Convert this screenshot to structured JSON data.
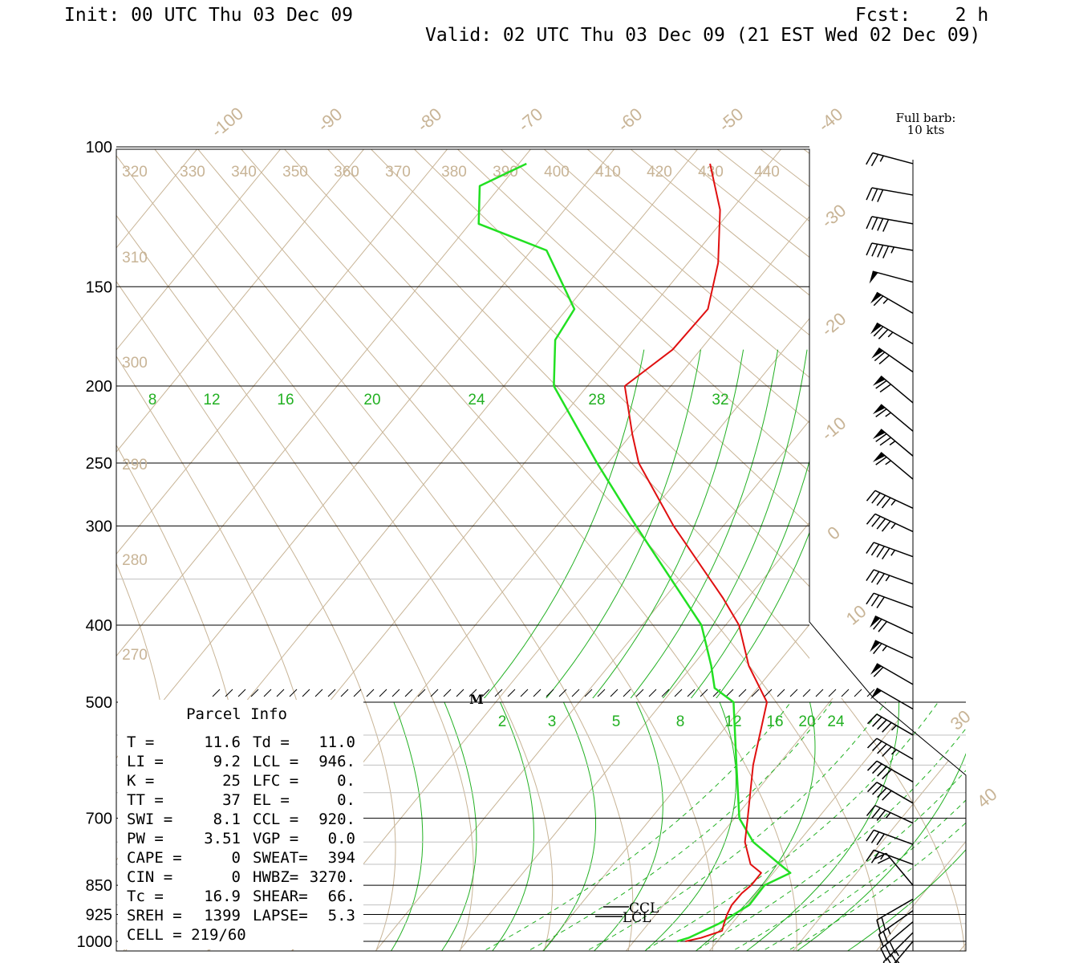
{
  "header": {
    "init": "Init: 00 UTC Thu 03 Dec 09",
    "fcst": "Fcst:    2 h",
    "valid": "Valid: 02 UTC Thu 03 Dec 09 (21 EST Wed 02 Dec 09)"
  },
  "colors": {
    "temperature": "#e01010",
    "dewpoint": "#22e022",
    "isotherm": "#c8b496",
    "mixing_ratio": "#22b022",
    "frame": "#000000"
  },
  "wind_legend": {
    "line1": "Full barb:",
    "line2": "10 kts"
  },
  "chart_data": {
    "type": "skew-t log-p sounding",
    "pressure_ticks": [
      "100",
      "150",
      "200",
      "250",
      "300",
      "400",
      "500",
      "700",
      "850",
      "925",
      "1000"
    ],
    "isotherm_labels": [
      "-100",
      "-90",
      "-80",
      "-70",
      "-60",
      "-50",
      "-40",
      "-30",
      "-20",
      "-10",
      "0",
      "10",
      "30",
      "40"
    ],
    "theta_labels_top": [
      "320",
      "330",
      "340",
      "350",
      "360",
      "370",
      "380",
      "390",
      "400",
      "410",
      "420",
      "430",
      "440"
    ],
    "theta_labels_left": [
      "310",
      "300",
      "290",
      "280",
      "270"
    ],
    "mixing_ratio_upper": [
      "8",
      "12",
      "16",
      "20",
      "24",
      "28",
      "32"
    ],
    "mixing_ratio_lower": [
      "2",
      "3",
      "5",
      "8",
      "12",
      "16",
      "20",
      "24"
    ],
    "level_markers": [
      "CCL",
      "LCL",
      "M"
    ],
    "temperature_profile": [
      [
        1000,
        13.5
      ],
      [
        990,
        14.5
      ],
      [
        970,
        15.3
      ],
      [
        950,
        13.8
      ],
      [
        925,
        12.0
      ],
      [
        900,
        10.4
      ],
      [
        870,
        9.0
      ],
      [
        850,
        8.4
      ],
      [
        820,
        7.0
      ],
      [
        800,
        4.0
      ],
      [
        750,
        -1.0
      ],
      [
        700,
        -5.0
      ],
      [
        600,
        -13.0
      ],
      [
        500,
        -20.0
      ],
      [
        450,
        -26.5
      ],
      [
        400,
        -32.0
      ],
      [
        370,
        -36.5
      ],
      [
        300,
        -48.5
      ],
      [
        250,
        -57.0
      ],
      [
        230,
        -59.5
      ],
      [
        200,
        -63.0
      ],
      [
        180,
        -59.0
      ],
      [
        160,
        -56.5
      ],
      [
        140,
        -57.0
      ],
      [
        120,
        -58.5
      ],
      [
        105,
        -61.0
      ]
    ],
    "dewpoint_profile": [
      [
        1000,
        12.5
      ],
      [
        990,
        13.0
      ],
      [
        950,
        13.2
      ],
      [
        900,
        12.5
      ],
      [
        850,
        10.0
      ],
      [
        820,
        10.5
      ],
      [
        800,
        7.5
      ],
      [
        750,
        0.0
      ],
      [
        700,
        -6.0
      ],
      [
        600,
        -15.0
      ],
      [
        500,
        -24.0
      ],
      [
        480,
        -28.0
      ],
      [
        450,
        -31.0
      ],
      [
        400,
        -36.5
      ],
      [
        300,
        -53.0
      ],
      [
        250,
        -62.0
      ],
      [
        200,
        -71.5
      ],
      [
        175,
        -73.5
      ],
      [
        160,
        -72.5
      ],
      [
        135,
        -78.0
      ],
      [
        125,
        -87.0
      ],
      [
        112,
        -88.0
      ],
      [
        105,
        -83.0
      ]
    ],
    "parcel_info": {
      "title": "Parcel Info",
      "rows": [
        [
          "T  =",
          "11.6",
          "Td =",
          "11.0"
        ],
        [
          "LI =",
          "9.2",
          "LCL =",
          "946."
        ],
        [
          "K  =",
          "25",
          "LFC =",
          "0."
        ],
        [
          "TT =",
          "37",
          "EL  =",
          "0."
        ],
        [
          "SWI =",
          "8.1",
          "CCL =",
          "920."
        ],
        [
          "PW =",
          "3.51",
          "VGP =",
          "0.0"
        ],
        [
          "CAPE =",
          "0",
          "SWEAT=",
          "394"
        ],
        [
          "CIN =",
          "0",
          "HWBZ=",
          "3270."
        ],
        [
          "Tc =",
          "16.9",
          "SHEAR=",
          "66."
        ],
        [
          "SREH =",
          "1399",
          "LAPSE=",
          "5.3"
        ],
        [
          "CELL = 219/60",
          "",
          "",
          ""
        ]
      ]
    },
    "wind_barbs": [
      {
        "p": 105,
        "dir": 285,
        "spd": 25
      },
      {
        "p": 115,
        "dir": 280,
        "spd": 30
      },
      {
        "p": 125,
        "dir": 280,
        "spd": 40
      },
      {
        "p": 135,
        "dir": 280,
        "spd": 45
      },
      {
        "p": 148,
        "dir": 285,
        "spd": 50
      },
      {
        "p": 162,
        "dir": 300,
        "spd": 65
      },
      {
        "p": 177,
        "dir": 300,
        "spd": 75
      },
      {
        "p": 192,
        "dir": 305,
        "spd": 70
      },
      {
        "p": 210,
        "dir": 310,
        "spd": 70
      },
      {
        "p": 228,
        "dir": 310,
        "spd": 65
      },
      {
        "p": 245,
        "dir": 310,
        "spd": 75
      },
      {
        "p": 262,
        "dir": 310,
        "spd": 65
      },
      {
        "p": 285,
        "dir": 295,
        "spd": 45
      },
      {
        "p": 305,
        "dir": 295,
        "spd": 45
      },
      {
        "p": 328,
        "dir": 290,
        "spd": 45
      },
      {
        "p": 355,
        "dir": 290,
        "spd": 35
      },
      {
        "p": 380,
        "dir": 290,
        "spd": 30
      },
      {
        "p": 410,
        "dir": 295,
        "spd": 70
      },
      {
        "p": 440,
        "dir": 295,
        "spd": 65
      },
      {
        "p": 475,
        "dir": 300,
        "spd": 60
      },
      {
        "p": 510,
        "dir": 300,
        "spd": 50
      },
      {
        "p": 550,
        "dir": 300,
        "spd": 45
      },
      {
        "p": 590,
        "dir": 300,
        "spd": 45
      },
      {
        "p": 630,
        "dir": 300,
        "spd": 40
      },
      {
        "p": 670,
        "dir": 300,
        "spd": 40
      },
      {
        "p": 710,
        "dir": 295,
        "spd": 35
      },
      {
        "p": 755,
        "dir": 290,
        "spd": 30
      },
      {
        "p": 800,
        "dir": 290,
        "spd": 25
      },
      {
        "p": 850,
        "dir": 320,
        "spd": 20
      },
      {
        "p": 885,
        "dir": 240,
        "spd": 20
      },
      {
        "p": 915,
        "dir": 235,
        "spd": 25
      },
      {
        "p": 945,
        "dir": 230,
        "spd": 30
      },
      {
        "p": 975,
        "dir": 225,
        "spd": 35
      },
      {
        "p": 1000,
        "dir": 220,
        "spd": 40
      }
    ]
  }
}
